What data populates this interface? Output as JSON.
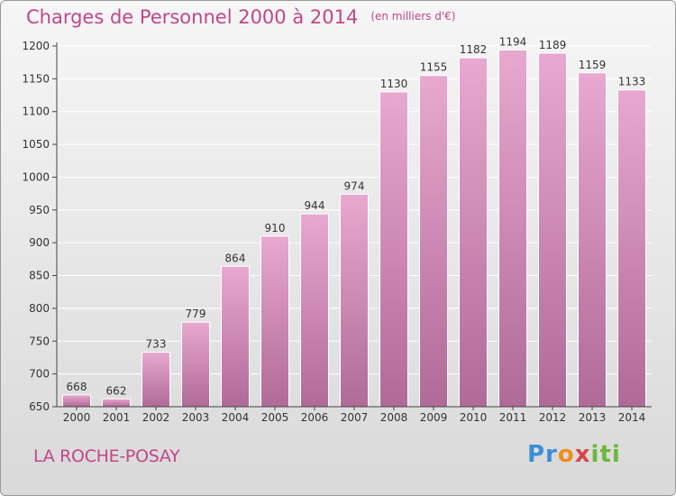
{
  "title": "Charges de Personnel 2000 à 2014",
  "subtitle": "(en milliers d'€)",
  "place_label": "LA ROCHE-POSAY",
  "logo_text": "Proxiti",
  "colors": {
    "bar_top": "#e8a8cf",
    "bar_bottom": "#b06a98",
    "title": "#c2468a",
    "grid": "#ffffff"
  },
  "chart_data": {
    "type": "bar",
    "title": "Charges de Personnel 2000 à 2014",
    "subtitle": "(en milliers d'€)",
    "xlabel": "",
    "ylabel": "",
    "categories": [
      "2000",
      "2001",
      "2002",
      "2003",
      "2004",
      "2005",
      "2006",
      "2007",
      "2008",
      "2009",
      "2010",
      "2011",
      "2012",
      "2013",
      "2014"
    ],
    "values": [
      668,
      662,
      733,
      779,
      864,
      910,
      944,
      974,
      1130,
      1155,
      1182,
      1194,
      1189,
      1159,
      1133
    ],
    "ylim": [
      650,
      1200
    ],
    "yticks": [
      650,
      700,
      750,
      800,
      850,
      900,
      950,
      1000,
      1050,
      1100,
      1150,
      1200
    ],
    "grid": true,
    "legend": "none"
  }
}
